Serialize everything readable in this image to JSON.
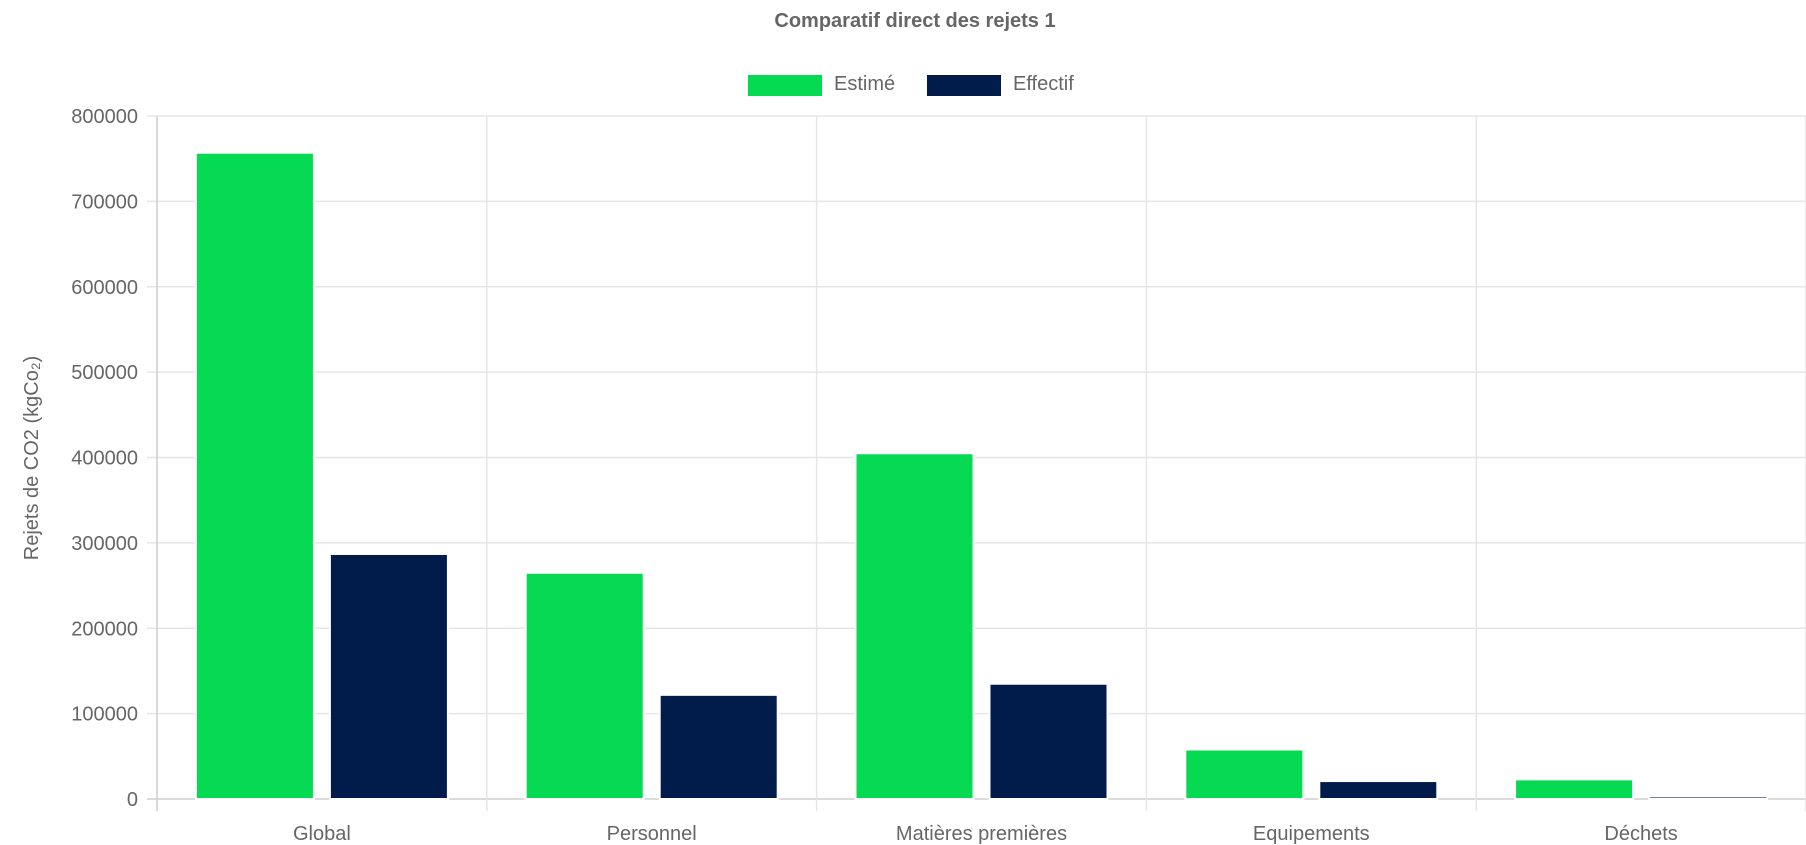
{
  "chart_data": {
    "type": "bar",
    "title": "Comparatif direct des rejets 1",
    "ylabel": "Rejets de CO2 (kgCo₂)",
    "xlabel": "",
    "categories": [
      "Global",
      "Personnel",
      "Matières premières",
      "Equipements",
      "Déchets"
    ],
    "series": [
      {
        "name": "Estimé",
        "color": "#06d952",
        "values": [
          757000,
          265000,
          405000,
          58000,
          23000
        ]
      },
      {
        "name": "Effectif",
        "color": "#011c4b",
        "values": [
          287000,
          122000,
          135000,
          21000,
          3000
        ]
      }
    ],
    "ylim": [
      0,
      800000
    ],
    "yticks": [
      "800000",
      "700000",
      "600000",
      "500000",
      "400000",
      "300000",
      "200000",
      "100000",
      "0"
    ],
    "legend_position": "top",
    "grid": true
  }
}
